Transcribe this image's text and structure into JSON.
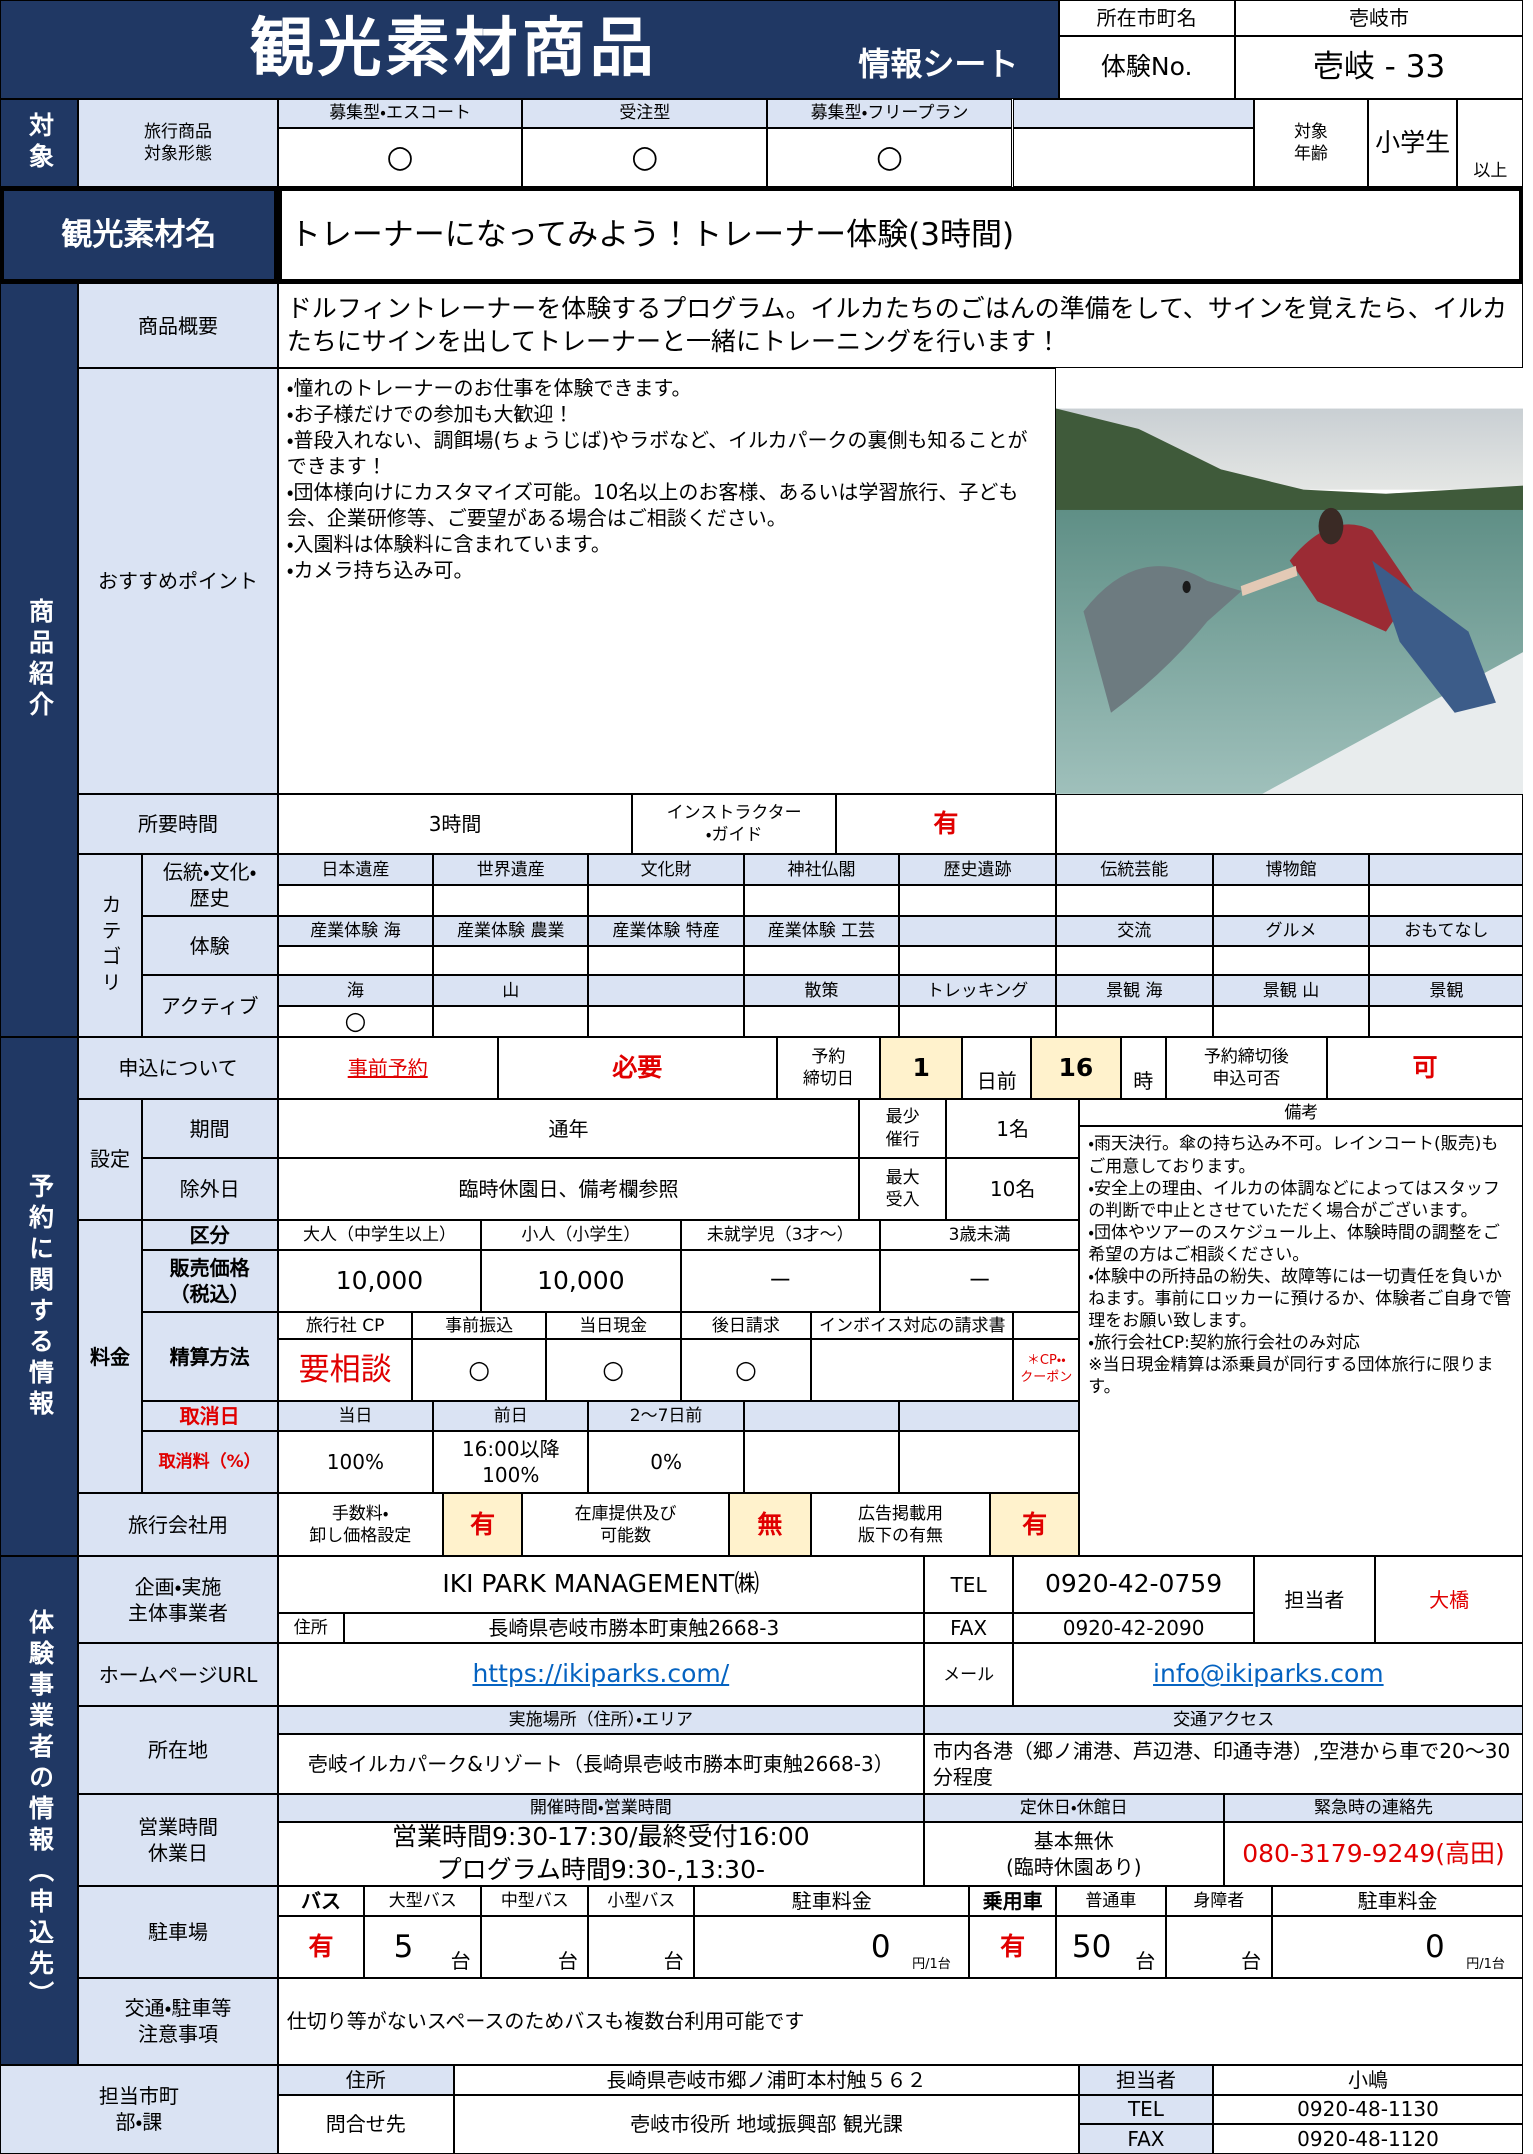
{
  "header": {
    "title": "観光素材商品",
    "subtitle": "情報シート",
    "location_label": "所在市町名",
    "location": "壱岐市",
    "number_label": "体験No.",
    "number": "壱岐 - 33"
  },
  "target": {
    "section": "対象",
    "label": "旅行商品\n対象形態",
    "types": [
      {
        "name": "募集型・エスコート",
        "mark": "○"
      },
      {
        "name": "受注型",
        "mark": "○"
      },
      {
        "name": "募集型・フリープラン",
        "mark": "○"
      }
    ],
    "age_label": "対象\n年齢",
    "age": "小学生",
    "age_suffix": "以上"
  },
  "material": {
    "label": "観光素材名",
    "name": "トレーナーになってみよう！トレーナー体験(3時間)"
  },
  "product": {
    "section": "商品紹介",
    "summary_label": "商品概要",
    "summary": "ドルフィントレーナーを体験するプログラム。イルカたちのごはんの準備をして、サインを覚えたら、イルカたちにサインを出してトレーナーと一緒にトレーニングを行います！",
    "points_label": "おすすめポイント",
    "points": [
      "・憧れのトレーナーのお仕事を体験できます。",
      "・お子様だけでの参加も大歓迎！",
      "・普段入れない、調餌場(ちょうじば)やラボなど、イルカパークの裏側も知ることができます！",
      "・団体様向けにカスタマイズ可能。10名以上のお客様、あるいは学習旅行、子ども会、企業研修等、ご要望がある場合はご相談ください。",
      "・入園料は体験料に含まれています。",
      "・カメラ持ち込み可。"
    ],
    "duration_label": "所要時間",
    "duration": "3時間",
    "instructor_label": "インストラクター\n・ガイド",
    "instructor": "有",
    "category_label": "カテゴリ",
    "categories": [
      {
        "label": "伝統・文化・\n歴史",
        "items": [
          "日本遺産",
          "世界遺産",
          "文化財",
          "神社仏閣",
          "歴史遺跡",
          "伝統芸能",
          "博物館"
        ]
      },
      {
        "label": "体験",
        "items": [
          "産業体験 海",
          "産業体験 農業",
          "産業体験 特産",
          "産業体験 工芸",
          "交流",
          "グルメ",
          "おもてなし"
        ]
      },
      {
        "label": "アクティブ",
        "items": [
          "海",
          "山",
          "散策",
          "トレッキング",
          "景観 海",
          "景観 山",
          "景観"
        ],
        "mark": "○"
      }
    ]
  },
  "reservation": {
    "section": "予約に関する情報",
    "apply_label": "申込について",
    "advance": "事前予約",
    "required": "必要",
    "deadline_label": "予約\n締切日",
    "deadline_days": "1",
    "days_unit": "日前",
    "deadline_hour": "16",
    "hour_unit": "時",
    "late_label": "予約締切後\n申込可否",
    "late": "可",
    "setting_label": "設定",
    "period_label": "期間",
    "period": "通年",
    "min_label": "最少\n催行",
    "min": "1名",
    "excluded_label": "除外日",
    "excluded": "臨時休園日、備考欄参照",
    "max_label": "最大\n受入",
    "max": "10名",
    "notes_label": "備考",
    "notes": [
      "・雨天決行。傘の持ち込み不可。レインコート(販売)もご用意しております。",
      "・安全上の理由、イルカの体調などによってはスタッフの判断で中止とさせていただく場合がございます。",
      "・団体やツアーのスケジュール上、体験時間の調整をご希望の方はご相談ください。",
      "・体験中の所持品の紛失、故障等には一切責任を負いかねます。事前にロッカーに預けるか、体験者ご自身で管理をお願い致します。",
      "・旅行会社CP:契約旅行会社のみ対応",
      "※当日現金精算は添乗員が同行する団体旅行に限ります。"
    ]
  },
  "fees": {
    "label": "料金",
    "class_label": "区分",
    "classes": [
      "大人（中学生以上）",
      "小人（小学生）",
      "未就学児（3才～）",
      "3歳未満"
    ],
    "price_label": "販売価格\n（税込）",
    "prices": [
      "10,000",
      "10,000",
      "－",
      "－"
    ],
    "settlement_label": "精算方法",
    "settlement": [
      {
        "name": "旅行社 CP",
        "value": "要相談"
      },
      {
        "name": "事前振込",
        "value": "○"
      },
      {
        "name": "当日現金",
        "value": "○"
      },
      {
        "name": "後日請求",
        "value": "○"
      },
      {
        "name": "インボイス対応の請求書"
      }
    ],
    "coupon": "＊CP・・\nクーポン",
    "cancel_day_label": "取消日",
    "cancel_rate_label": "取消料（%）",
    "cancellation": [
      {
        "day": "当日",
        "rate": "100%"
      },
      {
        "day": "前日",
        "rate": "16:00以降\n100%"
      },
      {
        "day": "2～7日前",
        "rate": "0%"
      }
    ]
  },
  "agency": {
    "label": "旅行会社用",
    "items": [
      {
        "label": "手数料・\n卸し価格設定",
        "value": "有"
      },
      {
        "label": "在庫提供及び\n可能数",
        "value": "無"
      },
      {
        "label": "広告掲載用\n版下の有無",
        "value": "有"
      }
    ]
  },
  "operator": {
    "section": "体験事業者の情報（申込先）",
    "company_label": "企画・実施\n主体事業者",
    "company": "IKI PARK MANAGEMENT㈱",
    "address_label": "住所",
    "address": "長崎県壱岐市勝本町東触2668-3",
    "tel_label": "TEL",
    "tel": "0920-42-0759",
    "fax_label": "FAX",
    "fax": "0920-42-2090",
    "contact_label": "担当者",
    "contact": "大橋",
    "url_label": "ホームページURL",
    "url": "https://ikiparks.com/",
    "mail_label": "メール",
    "mail": "info@ikiparks.com",
    "location_label": "所在地",
    "venue_label": "実施場所（住所）・エリア",
    "venue": "壱岐イルカパーク&リゾート（長崎県壱岐市勝本町東触2668-3）",
    "access_label": "交通アクセス",
    "access": "市内各港（郷ノ浦港、芦辺港、印通寺港）,空港から車で20～30分程度",
    "hours_label": "営業時間\n休業日",
    "hours_header": "開催時間・営業時間",
    "hours": "営業時間9:30-17:30/最終受付16:00\nプログラム時間9:30-,13:30-",
    "closed_label": "定休日・休館日",
    "closed": "基本無休\n(臨時休園あり)",
    "emergency_label": "緊急時の連絡先",
    "emergency": "080-3179-9249(高田)",
    "notes_label": "交通・駐車等\n注意事項",
    "notes": "仕切り等がないスペースのためバスも複数台利用可能です"
  },
  "parking": {
    "label": "駐車場",
    "bus_label": "バス",
    "bus_types": [
      "大型バス",
      "中型バス",
      "小型バス"
    ],
    "bus_fee_label": "駐車料金",
    "bus": "有",
    "bus_counts": [
      {
        "count": "5",
        "unit": "台"
      },
      {
        "unit": "台"
      },
      {
        "unit": "台"
      }
    ],
    "bus_fee": {
      "amount": "0",
      "unit": "円/1台"
    },
    "car_label": "乗用車",
    "car_types": [
      "普通車",
      "身障者"
    ],
    "car_fee_label": "駐車料金",
    "car": "有",
    "car_counts": [
      {
        "count": "50",
        "unit": "台"
      },
      {
        "unit": "台"
      }
    ],
    "car_fee": {
      "amount": "0",
      "unit": "円/1台"
    }
  },
  "municipality": {
    "label": "担当市町\n部・課",
    "address_label": "住所",
    "address": "長崎県壱岐市郷ノ浦町本村触５６２",
    "contact_label": "担当者",
    "contact": "小嶋",
    "inquiry_label": "問合せ先",
    "inquiry": "壱岐市役所 地域振興部 観光課",
    "tel_label": "TEL",
    "tel": "0920-48-1130",
    "fax_label": "FAX",
    "fax": "0920-48-1120"
  }
}
